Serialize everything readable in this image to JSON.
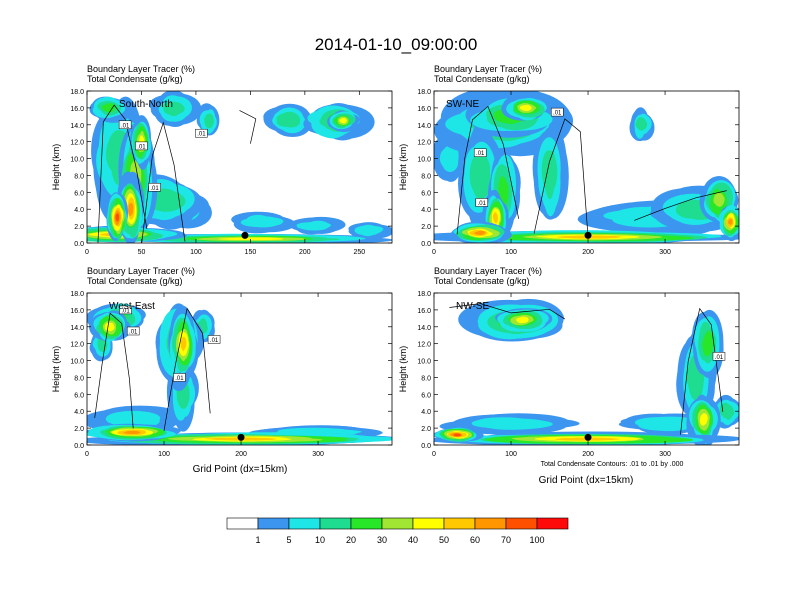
{
  "main_title": "2014-01-10_09:00:00",
  "chart_data": {
    "type": "heatmap",
    "shared": {
      "subtitle_line1": "Boundary Layer Tracer    (%)",
      "subtitle_line2": "Total Condensate    (g/kg)",
      "ylabel": "Height (km)",
      "ylim": [
        0,
        18
      ],
      "y_ticks": [
        "0.0",
        "2.0",
        "4.0",
        "6.0",
        "8.0",
        "10.0",
        "12.0",
        "14.0",
        "16.0",
        "18.0"
      ],
      "xlabel": "Grid Point (dx=15km)",
      "contour_note": "Total Condensate Contours: .01 to .01 by .000",
      "contour_label": ".01"
    },
    "panels": [
      {
        "id": "south-north",
        "section_label": "South-North",
        "xlim": [
          0,
          280
        ],
        "x_ticks": [
          0,
          50,
          100,
          150,
          200,
          250
        ],
        "marker_x": 145
      },
      {
        "id": "sw-ne",
        "section_label": "SW-NE",
        "xlim": [
          0,
          396
        ],
        "x_ticks": [
          0,
          100,
          200,
          300
        ],
        "marker_x": 200
      },
      {
        "id": "west-east",
        "section_label": "West-East",
        "xlim": [
          0,
          396
        ],
        "x_ticks": [
          0,
          100,
          200,
          300
        ],
        "marker_x": 200
      },
      {
        "id": "nw-se",
        "section_label": "NW-SE",
        "xlim": [
          0,
          396
        ],
        "x_ticks": [
          0,
          100,
          200,
          300
        ],
        "marker_x": 200
      }
    ],
    "colorbar": {
      "labels": [
        "1",
        "5",
        "10",
        "20",
        "30",
        "40",
        "50",
        "60",
        "70",
        "100"
      ],
      "colors": [
        "#ffffff",
        "#3c96f0",
        "#1ee6e6",
        "#1edc90",
        "#28e628",
        "#a0e632",
        "#ffff00",
        "#ffc800",
        "#ff9600",
        "#ff5000",
        "#ff0a0a"
      ]
    }
  }
}
